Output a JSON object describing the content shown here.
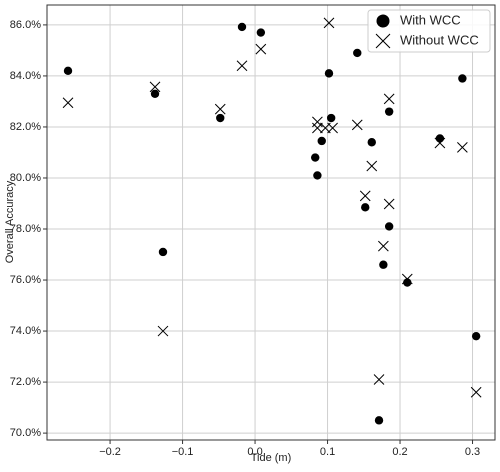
{
  "chart_data": {
    "type": "scatter",
    "xlabel": "Tide (m)",
    "ylabel": "Overall Accuracy",
    "xlim": [
      -0.287,
      0.331
    ],
    "ylim": [
      69.73,
      86.78
    ],
    "xticks": [
      {
        "value": -0.2,
        "label": "−0.2"
      },
      {
        "value": -0.1,
        "label": "−0.1"
      },
      {
        "value": 0,
        "label": "0.0"
      },
      0.1,
      0.2,
      0.3
    ],
    "yticks": [
      {
        "value": 70,
        "label": "70.0%"
      },
      {
        "value": 72,
        "label": "72.0%"
      },
      {
        "value": 74,
        "label": "74.0%"
      },
      {
        "value": 76,
        "label": "76.0%"
      },
      {
        "value": 78,
        "label": "78.0%"
      },
      {
        "value": 80,
        "label": "80.0%"
      },
      {
        "value": 82,
        "label": "82.0%"
      },
      {
        "value": 84,
        "label": "84.0%"
      },
      {
        "value": 86,
        "label": "86.0%"
      }
    ],
    "grid": true,
    "legend": "upper right",
    "series": [
      {
        "name": "With WCC",
        "color": "#000000",
        "marker": "circle",
        "x": [
          -0.258,
          -0.138,
          -0.048,
          -0.127,
          -0.018,
          0.008,
          0.102,
          0.141,
          0.105,
          0.092,
          0.083,
          0.086,
          0.161,
          0.185,
          0.152,
          0.185,
          0.177,
          0.21,
          0.255,
          0.286,
          0.305,
          0.171
        ],
        "values": [
          84.2,
          83.3,
          82.35,
          77.1,
          85.92,
          85.7,
          84.1,
          84.9,
          82.35,
          81.45,
          80.8,
          80.1,
          81.4,
          82.6,
          78.85,
          78.1,
          76.6,
          75.9,
          81.55,
          83.9,
          73.8,
          70.5
        ]
      },
      {
        "name": "Without WCC",
        "color": "#000000",
        "marker": "x",
        "x": [
          -0.258,
          -0.138,
          -0.048,
          -0.127,
          -0.018,
          0.008,
          0.102,
          0.086,
          0.086,
          0.097,
          0.107,
          0.141,
          0.185,
          0.161,
          0.152,
          0.185,
          0.177,
          0.21,
          0.255,
          0.286,
          0.305,
          0.171
        ],
        "values": [
          82.95,
          83.57,
          82.7,
          74.0,
          84.4,
          85.05,
          86.08,
          82.2,
          81.96,
          81.96,
          81.96,
          82.08,
          83.1,
          80.47,
          79.3,
          78.98,
          77.33,
          76.04,
          81.37,
          81.2,
          71.6,
          72.1
        ]
      }
    ]
  }
}
